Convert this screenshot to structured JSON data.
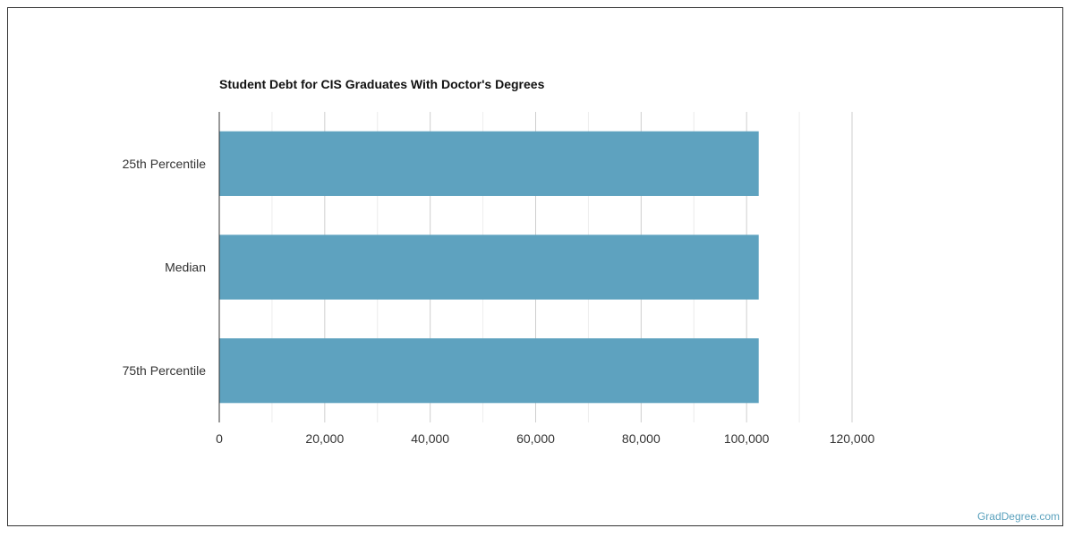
{
  "chart_data": {
    "type": "bar",
    "orientation": "horizontal",
    "title": "Student Debt for CIS Graduates With Doctor's Degrees",
    "categories": [
      "25th Percentile",
      "Median",
      "75th Percentile"
    ],
    "values": [
      102300,
      102300,
      102300
    ],
    "xlim": [
      0,
      120000
    ],
    "xticks": [
      0,
      20000,
      40000,
      60000,
      80000,
      100000,
      120000
    ],
    "xtick_labels": [
      "0",
      "20,000",
      "40,000",
      "60,000",
      "80,000",
      "100,000",
      "120,000"
    ],
    "xlabel": "",
    "ylabel": "",
    "grid": true,
    "bar_color": "#5ea2bf"
  },
  "watermark": "GradDegree.com"
}
